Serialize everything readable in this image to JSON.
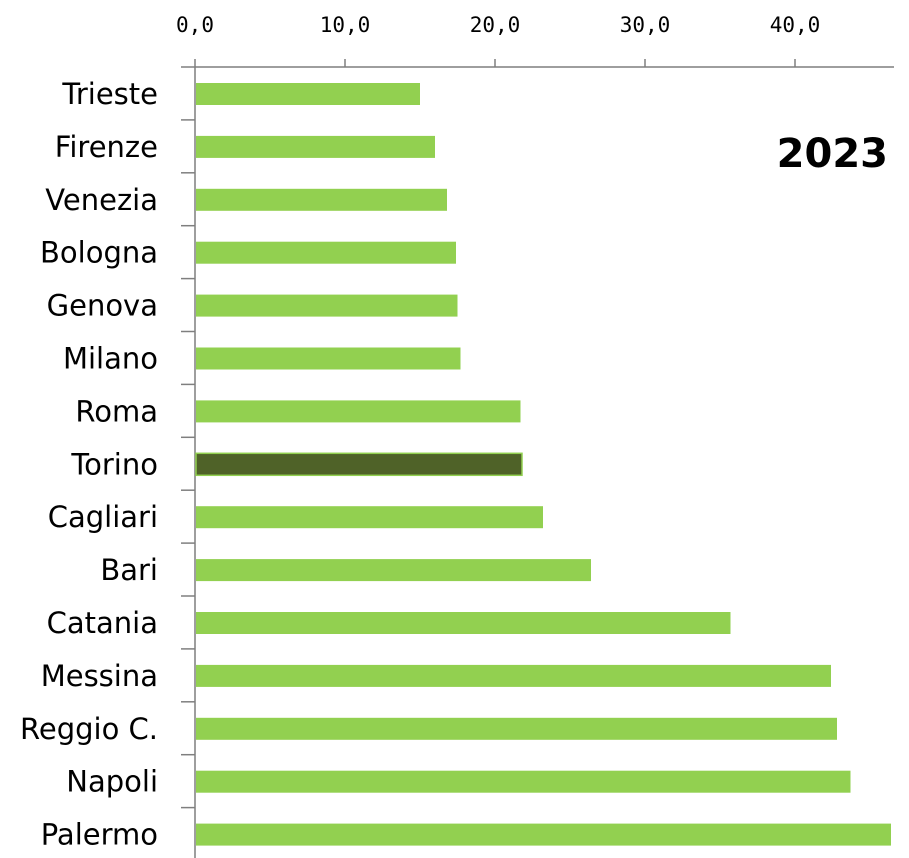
{
  "chart_data": {
    "type": "bar",
    "orientation": "horizontal",
    "title": "2023",
    "categories": [
      "Trieste",
      "Firenze",
      "Venezia",
      "Bologna",
      "Genova",
      "Milano",
      "Roma",
      "Torino",
      "Cagliari",
      "Bari",
      "Catania",
      "Messina",
      "Reggio C.",
      "Napoli",
      "Palermo"
    ],
    "values": [
      15.0,
      16.0,
      16.8,
      17.4,
      17.5,
      17.7,
      21.7,
      21.8,
      23.2,
      26.4,
      35.7,
      42.4,
      42.8,
      43.7,
      46.4
    ],
    "highlight_category": "Torino",
    "xlim": [
      0,
      46.6
    ],
    "x_ticks": [
      "0,0",
      "10,0",
      "20,0",
      "30,0",
      "40,0"
    ],
    "x_tick_values": [
      0,
      10,
      20,
      30,
      40
    ],
    "xaxis_position": "top",
    "grid": false,
    "legend": "none",
    "colors": {
      "bar": "#92d050",
      "highlight": "#4f6228",
      "axis": "#7f7f7f",
      "text": "#000000"
    }
  }
}
